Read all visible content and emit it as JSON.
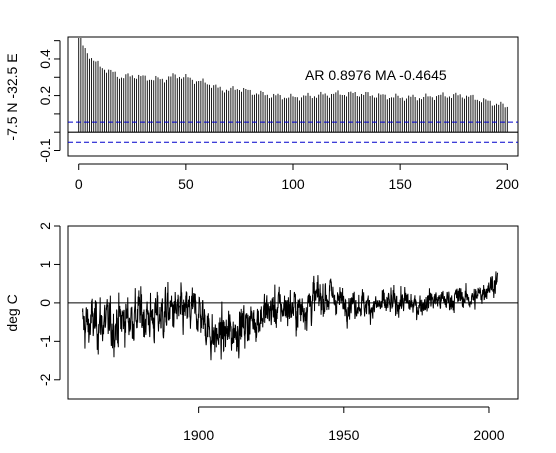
{
  "chart_data": [
    {
      "type": "bar",
      "subtype": "autocorrelation-lollipop",
      "title": "",
      "xlabel": "",
      "ylabel": "-7.5 N -32.5 E",
      "xlim": [
        -5,
        205
      ],
      "ylim": [
        -0.13,
        0.52
      ],
      "xticks": [
        "0",
        "50",
        "100",
        "150",
        "200"
      ],
      "yticks": [
        "-0.1",
        "0.2",
        "0.4"
      ],
      "annotation": "AR 0.8976  MA -0.4645",
      "confidence_band": [
        -0.055,
        0.055
      ],
      "zero_line": 0,
      "lag_start": 0,
      "ar": 0.8976,
      "ma": -0.4645,
      "anchor_lags": [
        0,
        1,
        2,
        3,
        5,
        8,
        10,
        15,
        20,
        25,
        30,
        35,
        40,
        45,
        50,
        55,
        60,
        65,
        70,
        75,
        80,
        90,
        100,
        110,
        120,
        130,
        140,
        150,
        160,
        170,
        180,
        190,
        200
      ],
      "anchor_values": [
        0.85,
        0.52,
        0.47,
        0.45,
        0.42,
        0.38,
        0.36,
        0.33,
        0.3,
        0.31,
        0.3,
        0.29,
        0.29,
        0.31,
        0.3,
        0.28,
        0.27,
        0.24,
        0.23,
        0.24,
        0.22,
        0.2,
        0.19,
        0.2,
        0.21,
        0.21,
        0.2,
        0.19,
        0.19,
        0.2,
        0.2,
        0.17,
        0.14
      ],
      "color": "#000000",
      "band_color": "#0000cc"
    },
    {
      "type": "line",
      "title": "",
      "xlabel": "",
      "ylabel": "deg C",
      "xlim": [
        1855,
        2010
      ],
      "ylim": [
        -2.5,
        2
      ],
      "xticks": [
        "1900",
        "1950",
        "2000"
      ],
      "yticks": [
        "-2",
        "-1",
        "0",
        "1",
        "2"
      ],
      "zero_line": 0,
      "x_start": 1860,
      "x_end": 2003,
      "anchor_years": [
        1860,
        1865,
        1870,
        1875,
        1880,
        1885,
        1890,
        1895,
        1900,
        1905,
        1910,
        1915,
        1920,
        1925,
        1930,
        1935,
        1940,
        1945,
        1950,
        1955,
        1960,
        1965,
        1970,
        1975,
        1980,
        1985,
        1990,
        1995,
        2000,
        2003
      ],
      "anchor_values": [
        -0.6,
        -0.5,
        -0.6,
        -0.4,
        -0.3,
        -0.4,
        -0.2,
        -0.3,
        -0.2,
        -0.9,
        -0.8,
        -0.6,
        -0.4,
        -0.2,
        -0.1,
        -0.2,
        0.1,
        0.2,
        0.0,
        0.0,
        -0.1,
        -0.05,
        0.05,
        -0.1,
        0.1,
        0.05,
        0.15,
        0.1,
        0.45,
        0.55
      ],
      "noise_amplitude": [
        0.55,
        0.5,
        0.45,
        0.3,
        0.25
      ],
      "color": "#000000"
    }
  ]
}
